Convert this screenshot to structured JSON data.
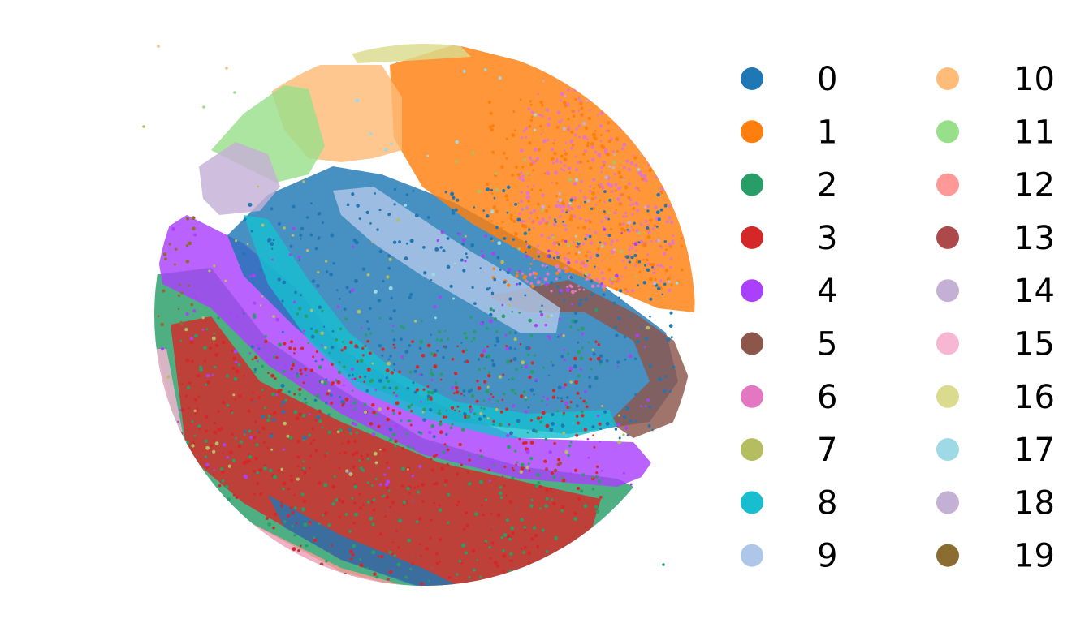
{
  "chart_data": {
    "type": "scatter",
    "title": "",
    "xlabel": "",
    "ylabel": "",
    "axes_visible": false,
    "grid": false,
    "legend_position": "right",
    "legend_columns": 2,
    "categories": [
      "0",
      "1",
      "2",
      "3",
      "4",
      "5",
      "6",
      "7",
      "8",
      "9",
      "10",
      "11",
      "12",
      "13",
      "14",
      "15",
      "16",
      "17",
      "18",
      "19"
    ],
    "colors": [
      "#1f77b4",
      "#ff7f0e",
      "#279e68",
      "#d62728",
      "#aa40fc",
      "#8c564b",
      "#e377c2",
      "#b5bd61",
      "#17becf",
      "#aec7e8",
      "#ffbb78",
      "#98df8a",
      "#ff9896",
      "#ad494a",
      "#c5b0d5",
      "#f7b6d2",
      "#dbdb8d",
      "#9edae5",
      "#c5b0d5",
      "#8c6d31"
    ],
    "series": [
      {
        "name": "0"
      },
      {
        "name": "1"
      },
      {
        "name": "2"
      },
      {
        "name": "3"
      },
      {
        "name": "4"
      },
      {
        "name": "5"
      },
      {
        "name": "6"
      },
      {
        "name": "7"
      },
      {
        "name": "8"
      },
      {
        "name": "9"
      },
      {
        "name": "10"
      },
      {
        "name": "11"
      },
      {
        "name": "12"
      },
      {
        "name": "13"
      },
      {
        "name": "14"
      },
      {
        "name": "15"
      },
      {
        "name": "16"
      },
      {
        "name": "17"
      },
      {
        "name": "18"
      },
      {
        "name": "19"
      }
    ]
  }
}
